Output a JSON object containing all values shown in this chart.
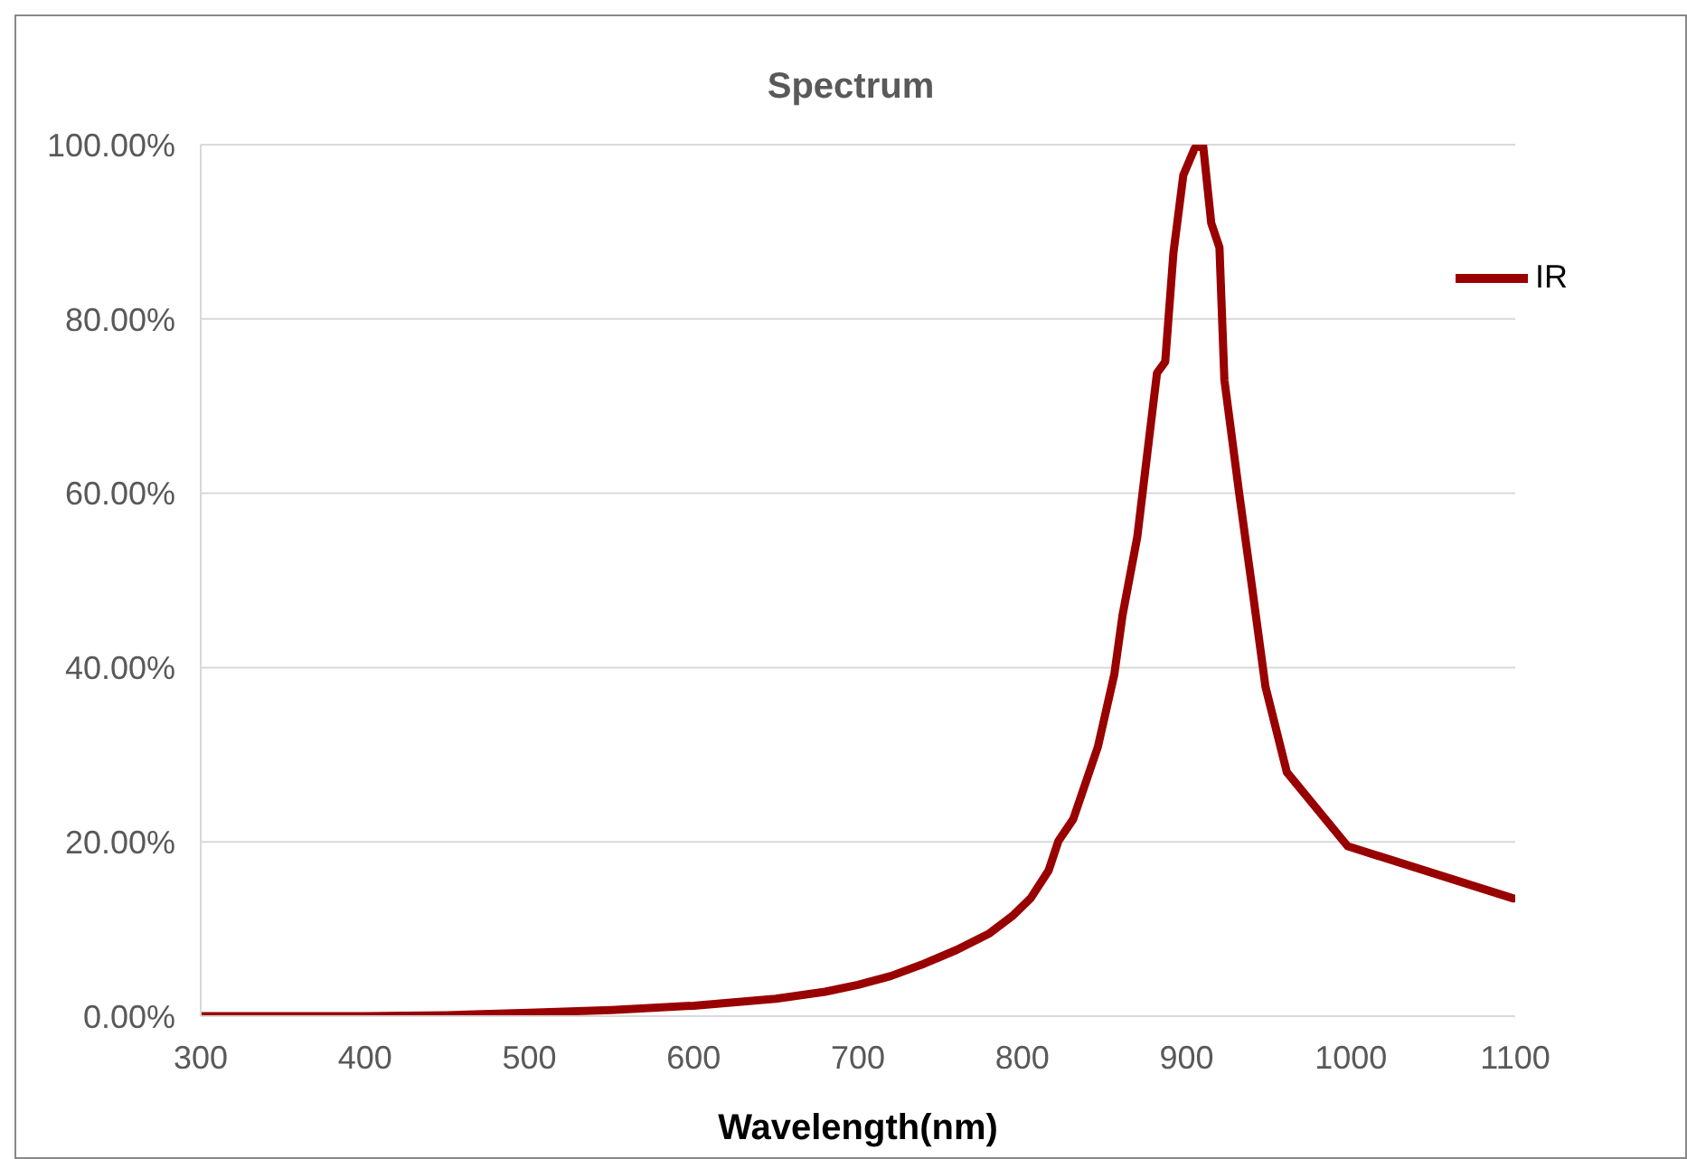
{
  "chart_data": {
    "type": "line",
    "title": "Spectrum",
    "xlabel": "Wavelength(nm)",
    "x": [
      300,
      400,
      450,
      500,
      550,
      600,
      650,
      680,
      700,
      720,
      740,
      760,
      780,
      794,
      805,
      816,
      822,
      831,
      846,
      856,
      861,
      870,
      877,
      882,
      887,
      892,
      898,
      905,
      910,
      915,
      920,
      923,
      932,
      940,
      948,
      961,
      998,
      1099
    ],
    "series": [
      {
        "name": "IR",
        "color": "#990000",
        "values": [
          0,
          0,
          0.1,
          0.4,
          0.7,
          1.2,
          2,
          2.8,
          3.6,
          4.6,
          6,
          7.6,
          9.5,
          11.5,
          13.5,
          16.7,
          20.1,
          22.6,
          30.9,
          39.2,
          46,
          55,
          66,
          73.8,
          75.1,
          87.6,
          96.5,
          99.6,
          100,
          91,
          88.2,
          73,
          60,
          49,
          37.8,
          28,
          19.5,
          13.5
        ]
      }
    ],
    "xlim": [
      300,
      1100
    ],
    "xticks": [
      300,
      400,
      500,
      600,
      700,
      800,
      900,
      1000,
      1100
    ],
    "ylim": [
      0,
      100
    ],
    "yticks": [
      {
        "value": 0,
        "label": "0.00%"
      },
      {
        "value": 20,
        "label": "20.00%"
      },
      {
        "value": 40,
        "label": "40.00%"
      },
      {
        "value": 60,
        "label": "60.00%"
      },
      {
        "value": 80,
        "label": "80.00%"
      },
      {
        "value": 100,
        "label": "100.00%"
      }
    ],
    "grid": "y",
    "legend": "top right",
    "marker": "none",
    "line_style": "solid"
  }
}
